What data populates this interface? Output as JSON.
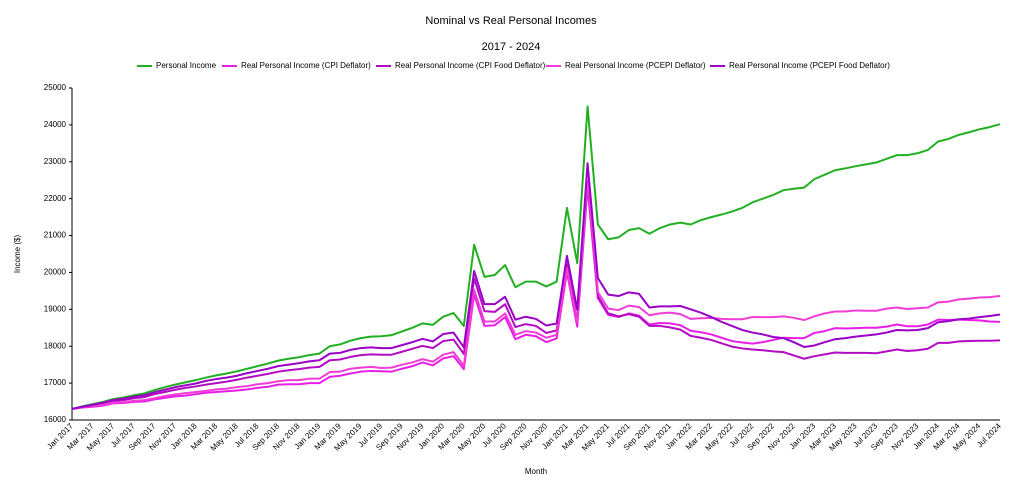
{
  "chart_data": {
    "type": "line",
    "title": "Nominal vs Real Personal Incomes",
    "subtitle": "2017 - 2024",
    "x_label": "Month",
    "y_label": "Income ($)",
    "grid": false,
    "legend": "top",
    "categories": [
      "Jan 2017",
      null,
      "Mar 2017",
      null,
      "May 2017",
      null,
      "Jul 2017",
      null,
      "Sep 2017",
      null,
      "Nov 2017",
      null,
      "Jan 2018",
      null,
      "Mar 2018",
      null,
      "May 2018",
      null,
      "Jul 2018",
      null,
      "Sep 2018",
      null,
      "Nov 2018",
      null,
      "Jan 2019",
      null,
      "Mar 2019",
      null,
      "May 2019",
      null,
      "Jul 2019",
      null,
      "Sep 2019",
      null,
      "Nov 2019",
      null,
      "Jan 2020",
      null,
      "Mar 2020",
      null,
      "May 2020",
      null,
      "Jul 2020",
      null,
      "Sep 2020",
      null,
      "Nov 2020",
      null,
      "Jan 2021",
      null,
      "Mar 2021",
      null,
      "May 2021",
      null,
      "Jul 2021",
      null,
      "Sep 2021",
      null,
      "Nov 2021",
      null,
      "Jan 2022",
      null,
      "Mar 2022",
      null,
      "May 2022",
      null,
      "Jul 2022",
      null,
      "Sep 2022",
      null,
      "Nov 2022",
      null,
      "Jan 2023",
      null,
      "Mar 2023",
      null,
      "May 2023",
      null,
      "Jul 2023",
      null,
      "Sep 2023",
      null,
      "Nov 2023",
      null,
      "Jan 2024",
      null,
      "Mar 2024",
      null,
      "May 2024",
      null,
      "Jul 2024"
    ],
    "ylim": [
      16000,
      25000
    ],
    "yticks": [
      16000,
      17000,
      18000,
      19000,
      20000,
      21000,
      22000,
      23000,
      24000,
      25000
    ],
    "series": [
      {
        "name": "Personal Income",
        "color": "#22b022",
        "values": [
          16300,
          16370,
          16430,
          16490,
          16570,
          16610,
          16670,
          16720,
          16810,
          16890,
          16960,
          17020,
          17080,
          17150,
          17210,
          17260,
          17320,
          17390,
          17460,
          17530,
          17610,
          17660,
          17700,
          17760,
          17800,
          18000,
          18050,
          18150,
          18220,
          18260,
          18270,
          18300,
          18400,
          18500,
          18620,
          18580,
          18800,
          18900,
          18550,
          20750,
          19880,
          19930,
          20200,
          19600,
          19750,
          19750,
          19620,
          19750,
          21750,
          20250,
          24500,
          21300,
          20900,
          20950,
          21150,
          21200,
          21050,
          21200,
          21300,
          21350,
          21300,
          21420,
          21500,
          21570,
          21650,
          21750,
          21900,
          22000,
          22100,
          22230,
          22270,
          22300,
          22530,
          22650,
          22770,
          22820,
          22880,
          22930,
          22980,
          23080,
          23180,
          23180,
          23230,
          23320,
          23550,
          23620,
          23730,
          23800,
          23880,
          23940,
          24020
        ]
      },
      {
        "name": "Real Personal Income (CPI Deflator)",
        "color": "#e81ee8",
        "values": [
          16300,
          16340,
          16360,
          16390,
          16450,
          16460,
          16490,
          16500,
          16560,
          16600,
          16640,
          16660,
          16700,
          16740,
          16760,
          16780,
          16800,
          16830,
          16870,
          16900,
          16960,
          16970,
          16970,
          17000,
          17000,
          17170,
          17200,
          17260,
          17310,
          17330,
          17320,
          17310,
          17390,
          17460,
          17560,
          17480,
          17670,
          17730,
          17380,
          19400,
          18550,
          18570,
          18790,
          18190,
          18310,
          18270,
          18110,
          18210,
          20010,
          18530,
          22320,
          19300,
          18850,
          18790,
          18890,
          18830,
          18590,
          18630,
          18620,
          18570,
          18420,
          18380,
          18320,
          18230,
          18140,
          18100,
          18070,
          18110,
          18170,
          18230,
          18220,
          18220,
          18360,
          18410,
          18490,
          18480,
          18490,
          18500,
          18500,
          18530,
          18590,
          18540,
          18540,
          18590,
          18720,
          18710,
          18720,
          18710,
          18700,
          18670,
          18660
        ]
      },
      {
        "name": "Real Personal Income (CPI Food Deflator)",
        "color": "#b40ac4",
        "values": [
          16300,
          16350,
          16400,
          16450,
          16520,
          16540,
          16590,
          16620,
          16700,
          16760,
          16820,
          16870,
          16910,
          16960,
          17000,
          17040,
          17090,
          17150,
          17200,
          17250,
          17310,
          17350,
          17380,
          17420,
          17440,
          17620,
          17640,
          17710,
          17760,
          17780,
          17770,
          17770,
          17850,
          17930,
          18010,
          17950,
          18140,
          18180,
          17790,
          19840,
          18950,
          18930,
          19140,
          18520,
          18600,
          18550,
          18360,
          18430,
          20230,
          18680,
          22420,
          19360,
          18890,
          18810,
          18870,
          18800,
          18550,
          18550,
          18510,
          18450,
          18280,
          18230,
          18170,
          18080,
          17990,
          17940,
          17910,
          17890,
          17860,
          17840,
          17750,
          17660,
          17730,
          17780,
          17830,
          17820,
          17820,
          17820,
          17810,
          17860,
          17910,
          17870,
          17890,
          17930,
          18090,
          18090,
          18130,
          18140,
          18150,
          18150,
          18160
        ]
      },
      {
        "name": "Real Personal Income (PCEPI Deflator)",
        "color": "#f23cd6",
        "values": [
          16300,
          16340,
          16380,
          16410,
          16470,
          16480,
          16520,
          16540,
          16590,
          16650,
          16690,
          16730,
          16760,
          16790,
          16830,
          16850,
          16890,
          16920,
          16970,
          17000,
          17050,
          17080,
          17080,
          17120,
          17120,
          17300,
          17310,
          17390,
          17420,
          17440,
          17410,
          17420,
          17500,
          17560,
          17650,
          17580,
          17770,
          17840,
          17470,
          19530,
          18670,
          18670,
          18890,
          18310,
          18410,
          18370,
          18230,
          18310,
          20120,
          18650,
          22490,
          19470,
          19020,
          18980,
          19100,
          19060,
          18840,
          18890,
          18910,
          18870,
          18740,
          18760,
          18770,
          18740,
          18730,
          18730,
          18790,
          18790,
          18790,
          18810,
          18770,
          18710,
          18810,
          18890,
          18940,
          18940,
          18970,
          18960,
          18960,
          19020,
          19050,
          19010,
          19030,
          19050,
          19190,
          19210,
          19270,
          19290,
          19320,
          19330,
          19360
        ]
      },
      {
        "name": "Real Personal Income (PCEPI Food Deflator)",
        "color": "#9a00c8",
        "values": [
          16300,
          16360,
          16410,
          16470,
          16540,
          16580,
          16630,
          16670,
          16750,
          16820,
          16890,
          16940,
          16990,
          17060,
          17110,
          17150,
          17200,
          17270,
          17330,
          17390,
          17460,
          17500,
          17540,
          17590,
          17620,
          17800,
          17820,
          17900,
          17950,
          17970,
          17950,
          17950,
          18030,
          18110,
          18200,
          18130,
          18330,
          18370,
          17970,
          20040,
          19140,
          19140,
          19340,
          18720,
          18800,
          18740,
          18560,
          18620,
          20450,
          18990,
          22960,
          19850,
          19400,
          19360,
          19460,
          19420,
          19050,
          19080,
          19080,
          19090,
          19000,
          18910,
          18790,
          18660,
          18550,
          18440,
          18370,
          18320,
          18250,
          18220,
          18110,
          17980,
          18020,
          18110,
          18190,
          18220,
          18260,
          18290,
          18320,
          18370,
          18440,
          18430,
          18440,
          18490,
          18650,
          18680,
          18730,
          18750,
          18790,
          18820,
          18860
        ]
      }
    ]
  }
}
